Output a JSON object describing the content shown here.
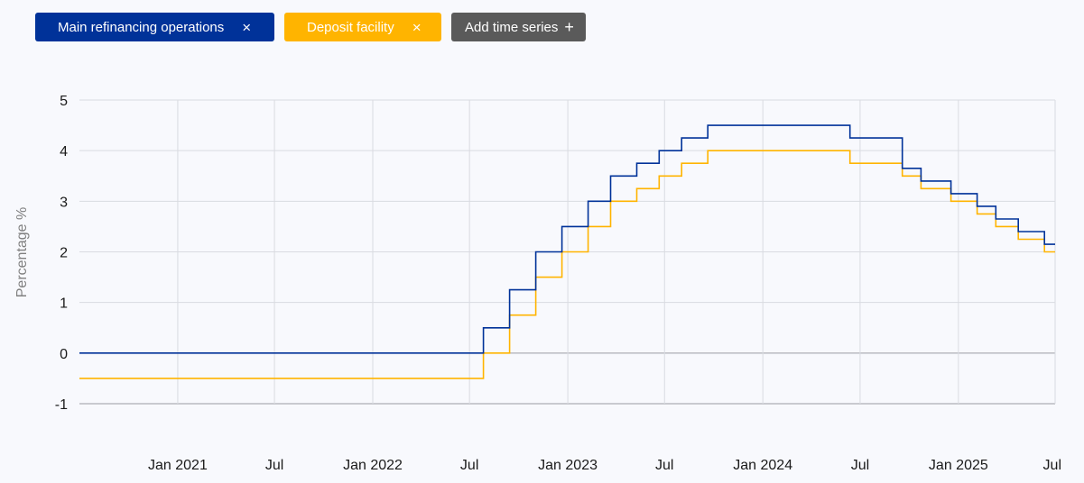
{
  "chips": {
    "mro_label": "Main refinancing operations",
    "df_label": "Deposit facility",
    "add_label": "Add time series",
    "close_glyph": "×",
    "plus_glyph": "+"
  },
  "colors": {
    "mro": "#003299",
    "df": "#ffb400",
    "grid": "#d9dbe1",
    "zero_axis": "#9a9ca3"
  },
  "chart_data": {
    "type": "line",
    "step": true,
    "ylabel": "Percentage %",
    "ylim": [
      -1,
      5
    ],
    "yticks": [
      -1,
      0,
      1,
      2,
      3,
      4,
      5
    ],
    "xlim": [
      "2020-07-01",
      "2025-07-01"
    ],
    "xticks": [
      {
        "date": "2021-01-01",
        "label": "Jan 2021"
      },
      {
        "date": "2021-07-01",
        "label": "Jul"
      },
      {
        "date": "2022-01-01",
        "label": "Jan 2022"
      },
      {
        "date": "2022-07-01",
        "label": "Jul"
      },
      {
        "date": "2023-01-01",
        "label": "Jan 2023"
      },
      {
        "date": "2023-07-01",
        "label": "Jul"
      },
      {
        "date": "2024-01-01",
        "label": "Jan 2024"
      },
      {
        "date": "2024-07-01",
        "label": "Jul"
      },
      {
        "date": "2025-01-01",
        "label": "Jan 2025"
      },
      {
        "date": "2025-07-01",
        "label": "Jul"
      }
    ],
    "grid": true,
    "series": [
      {
        "name": "Main refinancing operations",
        "color": "#003299",
        "points": [
          {
            "date": "2020-07-01",
            "value": 0.0
          },
          {
            "date": "2022-07-27",
            "value": 0.5
          },
          {
            "date": "2022-09-14",
            "value": 1.25
          },
          {
            "date": "2022-11-02",
            "value": 2.0
          },
          {
            "date": "2022-12-21",
            "value": 2.5
          },
          {
            "date": "2023-02-08",
            "value": 3.0
          },
          {
            "date": "2023-03-22",
            "value": 3.5
          },
          {
            "date": "2023-05-10",
            "value": 3.75
          },
          {
            "date": "2023-06-21",
            "value": 4.0
          },
          {
            "date": "2023-08-02",
            "value": 4.25
          },
          {
            "date": "2023-09-20",
            "value": 4.5
          },
          {
            "date": "2024-06-12",
            "value": 4.25
          },
          {
            "date": "2024-09-18",
            "value": 3.65
          },
          {
            "date": "2024-10-23",
            "value": 3.4
          },
          {
            "date": "2024-12-18",
            "value": 3.15
          },
          {
            "date": "2025-02-05",
            "value": 2.9
          },
          {
            "date": "2025-03-12",
            "value": 2.65
          },
          {
            "date": "2025-04-23",
            "value": 2.4
          },
          {
            "date": "2025-06-11",
            "value": 2.15
          },
          {
            "date": "2025-07-01",
            "value": 2.15
          }
        ]
      },
      {
        "name": "Deposit facility",
        "color": "#ffb400",
        "points": [
          {
            "date": "2020-07-01",
            "value": -0.5
          },
          {
            "date": "2022-07-27",
            "value": 0.0
          },
          {
            "date": "2022-09-14",
            "value": 0.75
          },
          {
            "date": "2022-11-02",
            "value": 1.5
          },
          {
            "date": "2022-12-21",
            "value": 2.0
          },
          {
            "date": "2023-02-08",
            "value": 2.5
          },
          {
            "date": "2023-03-22",
            "value": 3.0
          },
          {
            "date": "2023-05-10",
            "value": 3.25
          },
          {
            "date": "2023-06-21",
            "value": 3.5
          },
          {
            "date": "2023-08-02",
            "value": 3.75
          },
          {
            "date": "2023-09-20",
            "value": 4.0
          },
          {
            "date": "2024-06-12",
            "value": 3.75
          },
          {
            "date": "2024-09-18",
            "value": 3.5
          },
          {
            "date": "2024-10-23",
            "value": 3.25
          },
          {
            "date": "2024-12-18",
            "value": 3.0
          },
          {
            "date": "2025-02-05",
            "value": 2.75
          },
          {
            "date": "2025-03-12",
            "value": 2.5
          },
          {
            "date": "2025-04-23",
            "value": 2.25
          },
          {
            "date": "2025-06-11",
            "value": 2.0
          },
          {
            "date": "2025-07-01",
            "value": 2.0
          }
        ]
      }
    ]
  }
}
